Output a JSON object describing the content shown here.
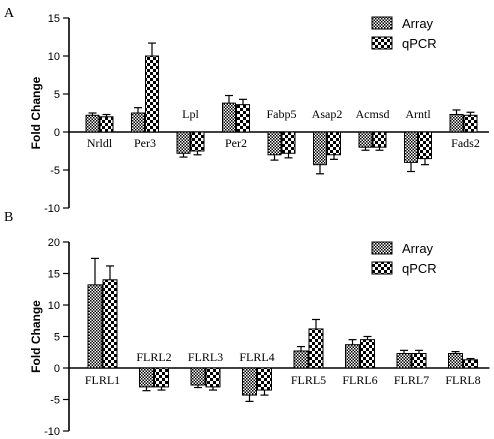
{
  "chart_data": [
    {
      "panel_label": "A",
      "type": "bar",
      "ylabel": "Fold Change",
      "ylim": [
        -10,
        15
      ],
      "yticks": [
        "-10",
        "-5",
        "0",
        "5",
        "10",
        "15"
      ],
      "categories": [
        "Nrldl",
        "Per3",
        "Lpl",
        "Per2",
        "Fabp5",
        "Asap2",
        "Acmsd",
        "Arntl",
        "Fads2"
      ],
      "series": [
        {
          "name": "Array",
          "values": [
            2.2,
            2.5,
            -2.8,
            3.8,
            -3.0,
            -4.3,
            -2.0,
            -4.0,
            2.3
          ],
          "errors": [
            0.3,
            0.7,
            0.5,
            1.0,
            0.7,
            1.2,
            0.4,
            1.2,
            0.6
          ]
        },
        {
          "name": "qPCR",
          "values": [
            2.0,
            10.0,
            -2.5,
            3.6,
            -2.8,
            -3.0,
            -2.0,
            -3.5,
            2.2
          ],
          "errors": [
            0.3,
            1.7,
            0.5,
            0.7,
            0.6,
            0.6,
            0.4,
            0.8,
            0.4
          ]
        }
      ],
      "label_above_axis": [
        false,
        false,
        true,
        false,
        true,
        true,
        true,
        true,
        false
      ],
      "legend": "top-right"
    },
    {
      "panel_label": "B",
      "type": "bar",
      "ylabel": "Fold Change",
      "ylim": [
        -10,
        20
      ],
      "yticks": [
        "-10",
        "-5",
        "0",
        "5",
        "10",
        "15",
        "20"
      ],
      "categories": [
        "FLRL1",
        "FLRL2",
        "FLRL3",
        "FLRL4",
        "FLRL5",
        "FLRL6",
        "FLRL7",
        "FLRL8"
      ],
      "series": [
        {
          "name": "Array",
          "values": [
            13.2,
            -3.0,
            -2.7,
            -4.3,
            2.7,
            3.7,
            2.3,
            2.3
          ],
          "errors": [
            4.2,
            0.6,
            0.4,
            1.0,
            0.7,
            0.8,
            0.5,
            0.3
          ]
        },
        {
          "name": "qPCR",
          "values": [
            14.0,
            -3.0,
            -3.0,
            -3.5,
            6.2,
            4.5,
            2.3,
            1.3
          ],
          "errors": [
            2.2,
            0.5,
            0.5,
            0.8,
            1.5,
            0.5,
            0.5,
            0.2
          ]
        }
      ],
      "label_above_axis": [
        false,
        true,
        true,
        true,
        false,
        false,
        false,
        false
      ],
      "legend": "top-right"
    }
  ]
}
